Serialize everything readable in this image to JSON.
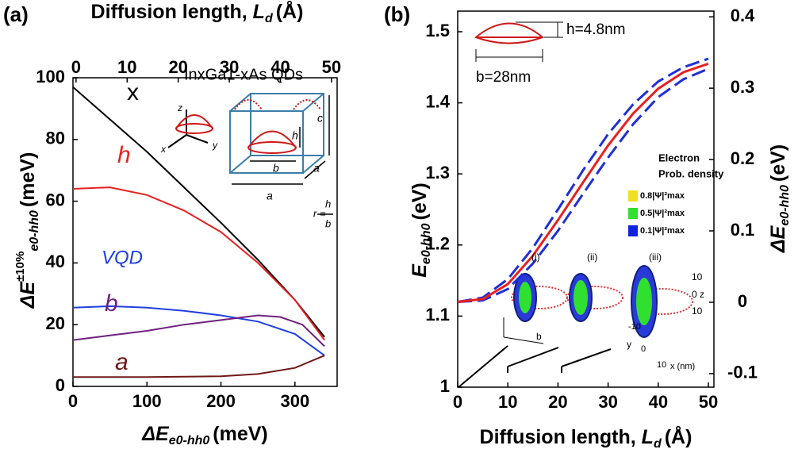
{
  "chart_data": [
    {
      "type": "line",
      "panel": "(a)",
      "xlabel": {
        "main": "ΔE",
        "sub": "e0-hh0",
        "unit": "(meV)"
      },
      "x2label": {
        "text": "Diffusion length, ",
        "var": "L",
        "sub": "d",
        "unit": "(Å)"
      },
      "ylabel": {
        "main": "ΔE",
        "sup": "±10%",
        "sub": "e0-hh0",
        "unit": "(meV)"
      },
      "xlim": [
        0,
        357
      ],
      "xticks": [
        0,
        100,
        200,
        300
      ],
      "x2lim": [
        -0.6,
        51.1
      ],
      "x2ticks": [
        0,
        10,
        20,
        30,
        40,
        50
      ],
      "ylim": [
        0,
        100
      ],
      "yticks": [
        0,
        20,
        40,
        60,
        80,
        100
      ],
      "series": [
        {
          "name": "x",
          "color": "#000000",
          "x": [
            0,
            100,
            200,
            250,
            300,
            340
          ],
          "values": [
            97,
            76,
            53,
            41,
            28,
            16
          ]
        },
        {
          "name": "h",
          "color": "#e82020",
          "x": [
            0,
            50,
            100,
            150,
            200,
            250,
            300,
            340
          ],
          "values": [
            64,
            64.5,
            62,
            57,
            50,
            40,
            28,
            15
          ]
        },
        {
          "name": "VQD",
          "color": "#2040e0",
          "x": [
            0,
            50,
            100,
            150,
            200,
            250,
            300,
            340
          ],
          "values": [
            25.5,
            26,
            25.5,
            24.5,
            23,
            21,
            17,
            10
          ]
        },
        {
          "name": "b",
          "color": "#702080",
          "x": [
            0,
            50,
            100,
            150,
            200,
            250,
            280,
            310,
            340
          ],
          "values": [
            15,
            16.5,
            18,
            20,
            21.5,
            23,
            22.5,
            20,
            13
          ]
        },
        {
          "name": "a",
          "color": "#701818",
          "x": [
            0,
            100,
            200,
            250,
            300,
            340
          ],
          "values": [
            3,
            3,
            3.3,
            4,
            6,
            10
          ]
        }
      ],
      "annotations": [
        "InxGa1-xAs QDs",
        "z",
        "x",
        "y",
        "c",
        "h",
        "b",
        "a",
        "a",
        "r =",
        "h",
        "b"
      ]
    },
    {
      "type": "line",
      "panel": "(b)",
      "xlabel": {
        "main": "Diffusion length, ",
        "var": "L",
        "sub": "d",
        "unit": "(Å)"
      },
      "ylabel": {
        "main": "E",
        "sub": "e0-hh0",
        "unit": "(eV)"
      },
      "y2label": {
        "main": "ΔE",
        "sub": "e0-hh0",
        "unit": "(eV)"
      },
      "xlim": [
        0,
        51.1
      ],
      "xticks": [
        0,
        10,
        20,
        30,
        40,
        50
      ],
      "ylim": [
        1,
        1.529
      ],
      "yticks": [
        1,
        1.1,
        1.2,
        1.3,
        1.4,
        1.5
      ],
      "y2lim": [
        -0.119,
        0.408
      ],
      "y2ticks": [
        -0.1,
        0,
        0.1,
        0.2,
        0.3,
        0.4
      ],
      "series": [
        {
          "color": "#1f2fd8",
          "dash": true,
          "x": [
            0,
            5,
            10,
            15,
            20,
            25,
            30,
            35,
            40,
            45,
            50
          ],
          "values": [
            1.12,
            1.126,
            1.152,
            1.196,
            1.25,
            1.305,
            1.356,
            1.398,
            1.43,
            1.45,
            1.462
          ]
        },
        {
          "color": "#1f2fd8",
          "dash": true,
          "x": [
            0,
            5,
            10,
            15,
            20,
            25,
            30,
            35,
            40,
            45,
            50
          ],
          "values": [
            1.12,
            1.122,
            1.138,
            1.174,
            1.22,
            1.272,
            1.323,
            1.37,
            1.408,
            1.433,
            1.448
          ]
        },
        {
          "color": "#e82020",
          "dash": false,
          "x": [
            0,
            5,
            10,
            15,
            20,
            25,
            30,
            35,
            40,
            45,
            50
          ],
          "values": [
            1.12,
            1.124,
            1.145,
            1.185,
            1.235,
            1.288,
            1.34,
            1.385,
            1.42,
            1.443,
            1.455
          ]
        }
      ],
      "annotations": [
        "h=4.8nm",
        "b=28nm",
        "Electron",
        "Prob. density",
        "0.8|Ψ|²max",
        "0.5|Ψ|²max",
        "0.1|Ψ|²max",
        "(i)",
        "(ii)",
        "(iii)",
        "b",
        "10",
        "0 z",
        "10",
        "-10",
        "0",
        "10",
        "y",
        "x (nm)"
      ]
    }
  ]
}
